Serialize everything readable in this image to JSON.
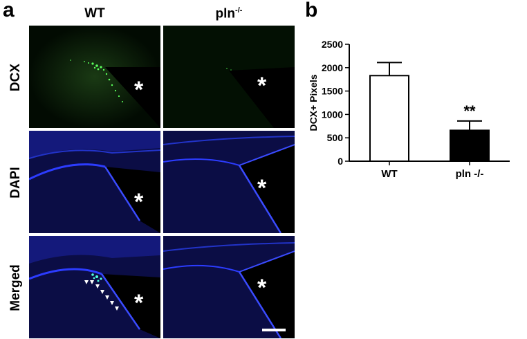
{
  "panel_a": {
    "label": "a",
    "columns": [
      "WT",
      "pln"
    ],
    "column_superscript": "-/-",
    "rows": [
      "DCX",
      "DAPI",
      "Merged"
    ],
    "marker": "*"
  },
  "panel_b": {
    "label": "b",
    "significance": "**"
  },
  "chart_data": {
    "type": "bar",
    "categories": [
      "WT",
      "pln -/-"
    ],
    "values": [
      1830,
      660
    ],
    "error_plus": [
      280,
      200
    ],
    "colors": [
      "#ffffff",
      "#000000"
    ],
    "ylabel": "DCX+ Pixels",
    "xlabel": "",
    "ylim": [
      0,
      2500
    ],
    "yticks": [
      0,
      500,
      1000,
      1500,
      2000,
      2500
    ],
    "annotations": [
      "**"
    ],
    "grid": false
  }
}
